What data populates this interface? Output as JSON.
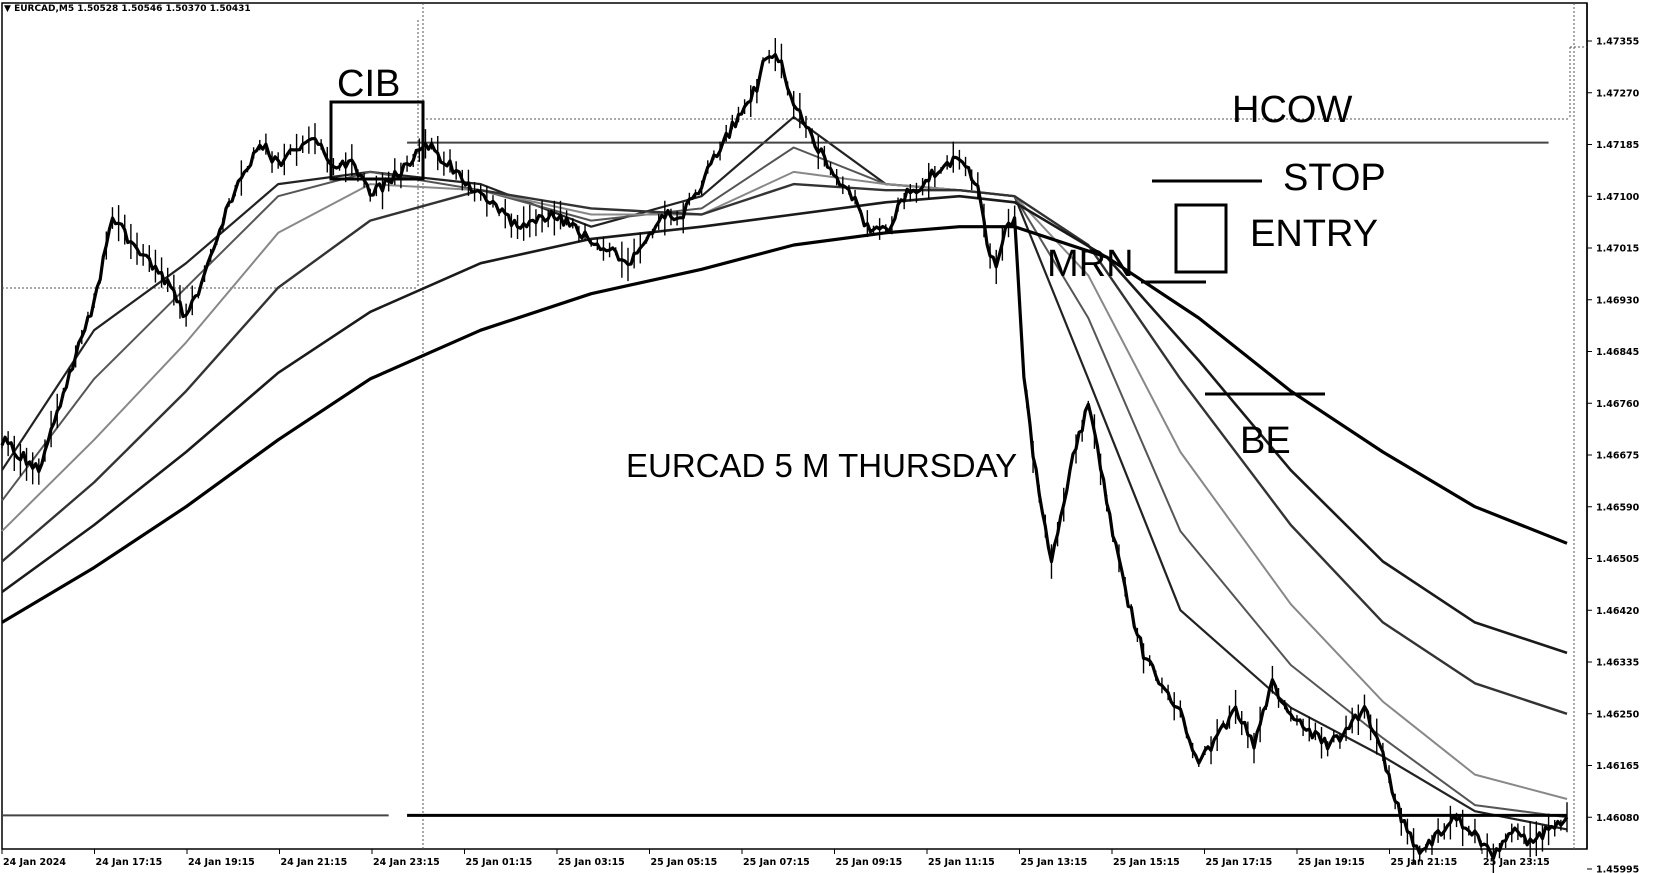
{
  "header": {
    "symbol": "EURCAD,M5",
    "ohlc": "1.50528 1.50546 1.50370 1.50431",
    "arrow": "▼"
  },
  "chart_data": {
    "type": "line",
    "title": "EURCAD 5 M THURSDAY",
    "xlabel": "",
    "ylabel": "",
    "ylim": [
      1.4595,
      1.4742
    ],
    "grid": false,
    "y_ticks": [
      "1.47355",
      "1.47270",
      "1.47185",
      "1.47100",
      "1.47015",
      "1.46930",
      "1.46845",
      "1.46760",
      "1.46675",
      "1.46590",
      "1.46505",
      "1.46420",
      "1.46335",
      "1.46250",
      "1.46165",
      "1.46080",
      "1.45995"
    ],
    "x_ticks": [
      "24 Jan 2024",
      "24 Jan 17:15",
      "24 Jan 19:15",
      "24 Jan 21:15",
      "24 Jan 23:15",
      "25 Jan 01:15",
      "25 Jan 03:15",
      "25 Jan 05:15",
      "25 Jan 07:15",
      "25 Jan 09:15",
      "25 Jan 11:15",
      "25 Jan 13:15",
      "25 Jan 15:15",
      "25 Jan 17:15",
      "25 Jan 19:15",
      "25 Jan 21:15",
      "25 Jan 23:15"
    ],
    "price": [
      [
        0,
        1.467
      ],
      [
        4,
        1.4665
      ],
      [
        8,
        1.4684
      ],
      [
        10,
        1.4692
      ],
      [
        12,
        1.4707
      ],
      [
        14,
        1.4702
      ],
      [
        18,
        1.4696
      ],
      [
        20,
        1.469
      ],
      [
        22,
        1.4697
      ],
      [
        24,
        1.4706
      ],
      [
        26,
        1.4713
      ],
      [
        28,
        1.4719
      ],
      [
        30,
        1.4715
      ],
      [
        32,
        1.4718
      ],
      [
        34,
        1.472
      ],
      [
        36,
        1.4714
      ],
      [
        38,
        1.4716
      ],
      [
        40,
        1.471
      ],
      [
        44,
        1.4715
      ],
      [
        46,
        1.4719
      ],
      [
        48,
        1.4716
      ],
      [
        52,
        1.471
      ],
      [
        56,
        1.4705
      ],
      [
        60,
        1.4707
      ],
      [
        64,
        1.4703
      ],
      [
        68,
        1.4699
      ],
      [
        70,
        1.4703
      ],
      [
        72,
        1.4707
      ],
      [
        74,
        1.4707
      ],
      [
        76,
        1.4712
      ],
      [
        78,
        1.4718
      ],
      [
        80,
        1.4723
      ],
      [
        82,
        1.4728
      ],
      [
        83,
        1.4733
      ],
      [
        84,
        1.4734
      ],
      [
        85,
        1.473
      ],
      [
        86,
        1.4725
      ],
      [
        88,
        1.472
      ],
      [
        90,
        1.4714
      ],
      [
        92,
        1.4711
      ],
      [
        94,
        1.4705
      ],
      [
        96,
        1.4704
      ],
      [
        98,
        1.471
      ],
      [
        100,
        1.4712
      ],
      [
        102,
        1.4715
      ],
      [
        104,
        1.4716
      ],
      [
        106,
        1.4712
      ],
      [
        107,
        1.4702
      ],
      [
        108,
        1.4698
      ],
      [
        109,
        1.4704
      ],
      [
        110,
        1.4707
      ],
      [
        111,
        1.468
      ],
      [
        112,
        1.4668
      ],
      [
        114,
        1.465
      ],
      [
        116,
        1.4665
      ],
      [
        118,
        1.4676
      ],
      [
        120,
        1.466
      ],
      [
        122,
        1.4645
      ],
      [
        124,
        1.4635
      ],
      [
        126,
        1.463
      ],
      [
        128,
        1.4625
      ],
      [
        130,
        1.4617
      ],
      [
        132,
        1.4621
      ],
      [
        134,
        1.4626
      ],
      [
        136,
        1.462
      ],
      [
        138,
        1.463
      ],
      [
        140,
        1.4625
      ],
      [
        142,
        1.4622
      ],
      [
        144,
        1.462
      ],
      [
        146,
        1.4622
      ],
      [
        148,
        1.4626
      ],
      [
        150,
        1.4618
      ],
      [
        152,
        1.4608
      ],
      [
        154,
        1.4602
      ],
      [
        156,
        1.4605
      ],
      [
        158,
        1.4608
      ],
      [
        160,
        1.4605
      ],
      [
        162,
        1.4602
      ],
      [
        164,
        1.4606
      ],
      [
        166,
        1.4604
      ],
      [
        168,
        1.4606
      ],
      [
        170,
        1.4608
      ]
    ],
    "moving_averages": [
      {
        "points": [
          [
            0,
            1.4665
          ],
          [
            10,
            1.4688
          ],
          [
            20,
            1.4699
          ],
          [
            30,
            1.4712
          ],
          [
            40,
            1.4714
          ],
          [
            52,
            1.4712
          ],
          [
            64,
            1.4705
          ],
          [
            76,
            1.471
          ],
          [
            86,
            1.4723
          ],
          [
            96,
            1.4712
          ],
          [
            104,
            1.4711
          ],
          [
            110,
            1.471
          ],
          [
            118,
            1.468
          ],
          [
            128,
            1.4642
          ],
          [
            140,
            1.4626
          ],
          [
            150,
            1.4618
          ],
          [
            160,
            1.4609
          ],
          [
            170,
            1.4606
          ]
        ]
      },
      {
        "points": [
          [
            0,
            1.466
          ],
          [
            10,
            1.468
          ],
          [
            20,
            1.4695
          ],
          [
            30,
            1.471
          ],
          [
            40,
            1.4714
          ],
          [
            52,
            1.4711
          ],
          [
            64,
            1.4706
          ],
          [
            76,
            1.4708
          ],
          [
            86,
            1.4718
          ],
          [
            96,
            1.4712
          ],
          [
            104,
            1.4711
          ],
          [
            110,
            1.471
          ],
          [
            118,
            1.469
          ],
          [
            128,
            1.4655
          ],
          [
            140,
            1.4633
          ],
          [
            150,
            1.4621
          ],
          [
            160,
            1.461
          ],
          [
            170,
            1.4608
          ]
        ]
      },
      {
        "points": [
          [
            0,
            1.4655
          ],
          [
            10,
            1.467
          ],
          [
            20,
            1.4686
          ],
          [
            30,
            1.4704
          ],
          [
            40,
            1.4712
          ],
          [
            52,
            1.4711
          ],
          [
            64,
            1.4707
          ],
          [
            76,
            1.4707
          ],
          [
            86,
            1.4714
          ],
          [
            96,
            1.4712
          ],
          [
            104,
            1.4711
          ],
          [
            110,
            1.471
          ],
          [
            118,
            1.4697
          ],
          [
            128,
            1.4668
          ],
          [
            140,
            1.4643
          ],
          [
            150,
            1.4627
          ],
          [
            160,
            1.4615
          ],
          [
            170,
            1.4611
          ]
        ]
      },
      {
        "points": [
          [
            0,
            1.465
          ],
          [
            10,
            1.4663
          ],
          [
            20,
            1.4678
          ],
          [
            30,
            1.4695
          ],
          [
            40,
            1.4706
          ],
          [
            52,
            1.4711
          ],
          [
            64,
            1.4708
          ],
          [
            76,
            1.4707
          ],
          [
            86,
            1.4712
          ],
          [
            96,
            1.4711
          ],
          [
            104,
            1.4711
          ],
          [
            110,
            1.471
          ],
          [
            118,
            1.4702
          ],
          [
            128,
            1.468
          ],
          [
            140,
            1.4656
          ],
          [
            150,
            1.464
          ],
          [
            160,
            1.463
          ],
          [
            170,
            1.4625
          ]
        ]
      },
      {
        "points": [
          [
            0,
            1.4645
          ],
          [
            10,
            1.4656
          ],
          [
            20,
            1.4668
          ],
          [
            30,
            1.4681
          ],
          [
            40,
            1.4691
          ],
          [
            52,
            1.4699
          ],
          [
            64,
            1.4703
          ],
          [
            76,
            1.4705
          ],
          [
            86,
            1.4707
          ],
          [
            96,
            1.4709
          ],
          [
            104,
            1.471
          ],
          [
            110,
            1.4709
          ],
          [
            120,
            1.47
          ],
          [
            130,
            1.4683
          ],
          [
            140,
            1.4665
          ],
          [
            150,
            1.465
          ],
          [
            160,
            1.464
          ],
          [
            170,
            1.4635
          ]
        ]
      },
      {
        "points": [
          [
            0,
            1.464
          ],
          [
            10,
            1.4649
          ],
          [
            20,
            1.4659
          ],
          [
            30,
            1.467
          ],
          [
            40,
            1.468
          ],
          [
            52,
            1.4688
          ],
          [
            64,
            1.4694
          ],
          [
            76,
            1.4698
          ],
          [
            86,
            1.4702
          ],
          [
            96,
            1.4704
          ],
          [
            104,
            1.4705
          ],
          [
            110,
            1.4705
          ],
          [
            120,
            1.47
          ],
          [
            130,
            1.469
          ],
          [
            140,
            1.4678
          ],
          [
            150,
            1.4668
          ],
          [
            160,
            1.4659
          ],
          [
            170,
            1.4653
          ]
        ]
      }
    ],
    "levels": [
      {
        "y": 1.47188,
        "x_from": 44,
        "x_to": 168
      },
      {
        "y": 1.46083,
        "x_from": 44,
        "x_to": 170
      },
      {
        "y": 1.46083,
        "x_from": 0,
        "x_to": 42
      }
    ],
    "annotations": {
      "cib": "CIB",
      "hcow": "HCOW",
      "stop": "STOP",
      "entry": "ENTRY",
      "mrn": "MRN",
      "be": "BE"
    }
  }
}
